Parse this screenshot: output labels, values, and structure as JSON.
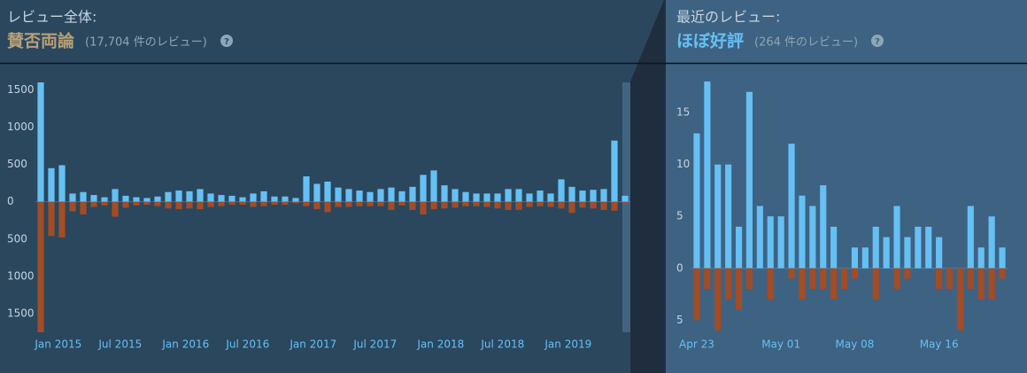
{
  "chart_data": [
    {
      "type": "bar",
      "title": "レビュー全体:",
      "rating": "賛否両論",
      "review_count": "(17,704 件のレビュー)",
      "categories": [
        "Jan 2015",
        null,
        null,
        null,
        null,
        null,
        "Jul 2015",
        null,
        null,
        null,
        null,
        null,
        "Jan 2016",
        null,
        null,
        null,
        null,
        null,
        "Jul 2016",
        null,
        null,
        null,
        null,
        null,
        "Jan 2017",
        null,
        null,
        null,
        null,
        null,
        "Jul 2017",
        null,
        null,
        null,
        null,
        null,
        "Jan 2018",
        null,
        null,
        null,
        null,
        null,
        "Jul 2018",
        null,
        null,
        null,
        null,
        null,
        "Jan 2019",
        null,
        null,
        null,
        null,
        null,
        null,
        null
      ],
      "series": [
        {
          "color": "#66c0f4",
          "values": [
            1600,
            450,
            490,
            110,
            130,
            90,
            60,
            170,
            80,
            60,
            50,
            70,
            130,
            150,
            140,
            170,
            110,
            90,
            80,
            60,
            110,
            140,
            70,
            70,
            50,
            340,
            240,
            270,
            190,
            170,
            150,
            130,
            170,
            190,
            140,
            200,
            360,
            420,
            220,
            170,
            130,
            110,
            110,
            110,
            170,
            170,
            110,
            150,
            110,
            300,
            200,
            150,
            160,
            170,
            820,
            80
          ]
        },
        {
          "color": "#a34c25",
          "values": [
            -1750,
            -460,
            -480,
            -130,
            -170,
            -70,
            -50,
            -200,
            -80,
            -50,
            -40,
            -60,
            -90,
            -100,
            -90,
            -100,
            -70,
            -60,
            -40,
            -40,
            -70,
            -60,
            -40,
            -40,
            -20,
            -60,
            -100,
            -140,
            -70,
            -70,
            -60,
            -60,
            -60,
            -110,
            -50,
            -110,
            -170,
            -100,
            -90,
            -80,
            -60,
            -60,
            -70,
            -90,
            -110,
            -110,
            -70,
            -60,
            -70,
            -90,
            -150,
            -80,
            -90,
            -110,
            -120,
            -20
          ]
        }
      ],
      "ylim": [
        -1750,
        1600
      ],
      "yticks": [
        1500,
        1000,
        500,
        0,
        {
          "value": -500,
          "label": "500"
        },
        {
          "value": -1000,
          "label": "1000"
        },
        {
          "value": -1500,
          "label": "1500"
        }
      ]
    },
    {
      "type": "bar",
      "title": "最近のレビュー:",
      "rating": "ほぼ好評",
      "review_count": "(264 件のレビュー)",
      "categories": [
        "Apr 23",
        null,
        null,
        null,
        null,
        null,
        null,
        null,
        "May 01",
        null,
        null,
        null,
        null,
        null,
        null,
        "May 08",
        null,
        null,
        null,
        null,
        null,
        null,
        null,
        "May 16",
        null,
        null,
        null,
        null,
        null,
        null
      ],
      "series": [
        {
          "color": "#66c0f4",
          "values": [
            13,
            18,
            10,
            10,
            4,
            17,
            6,
            5,
            5,
            12,
            7,
            6,
            8,
            4,
            0,
            2,
            2,
            4,
            3,
            6,
            3,
            4,
            4,
            3,
            0,
            0,
            6,
            2,
            5,
            2
          ]
        },
        {
          "color": "#a34c25",
          "values": [
            -5,
            -2,
            -6,
            -3,
            -4,
            -2,
            0,
            -3,
            0,
            -1,
            -3,
            -2,
            -2,
            -3,
            -2,
            -1,
            0,
            -3,
            0,
            -2,
            -1,
            0,
            0,
            -2,
            -2,
            -6,
            -2,
            -3,
            -3,
            -1
          ]
        }
      ],
      "ylim": [
        -6,
        18
      ],
      "yticks": [
        15,
        10,
        5,
        0,
        {
          "value": -5,
          "label": "5"
        }
      ]
    }
  ]
}
